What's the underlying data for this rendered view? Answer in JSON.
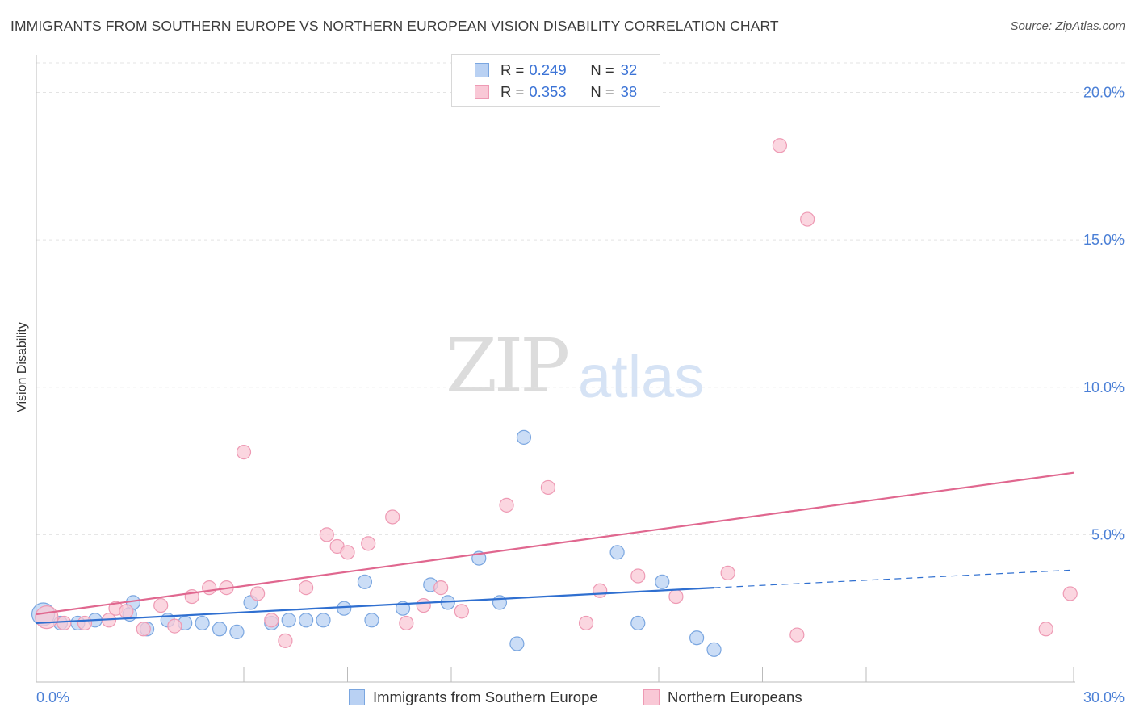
{
  "title": "IMMIGRANTS FROM SOUTHERN EUROPE VS NORTHERN EUROPEAN VISION DISABILITY CORRELATION CHART",
  "source": "Source: ZipAtlas.com",
  "watermark": {
    "zip": "ZIP",
    "atlas": "atlas"
  },
  "legend": {
    "r_label": "R =",
    "n_label": "N =",
    "rows": [
      {
        "r": "0.249",
        "n": "32"
      },
      {
        "r": "0.353",
        "n": "38"
      }
    ]
  },
  "colors": {
    "blue_fill": "#b9d1f3",
    "blue_stroke": "#7aa6e0",
    "blue_line": "#2f6fd0",
    "pink_fill": "#f9c8d6",
    "pink_stroke": "#ee9ab4",
    "pink_line": "#e0678f",
    "tick_color": "#4a7fd6"
  },
  "chart_data": {
    "type": "scatter",
    "title": "IMMIGRANTS FROM SOUTHERN EUROPE VS NORTHERN EUROPEAN VISION DISABILITY CORRELATION CHART",
    "xlabel": "",
    "ylabel": "Vision Disability",
    "xlim": [
      0,
      30
    ],
    "ylim": [
      0,
      21
    ],
    "x_tick_labels": [
      "0.0%",
      "30.0%"
    ],
    "y_ticks": [
      5,
      10,
      15,
      20
    ],
    "y_tick_labels": [
      "5.0%",
      "10.0%",
      "15.0%",
      "20.0%"
    ],
    "grid": true,
    "legend_position": "bottom",
    "series": [
      {
        "name": "Immigrants from Southern Europe",
        "color": "blue",
        "points": [
          [
            0.2,
            2.3
          ],
          [
            0.7,
            2.0
          ],
          [
            1.2,
            2.0
          ],
          [
            1.7,
            2.1
          ],
          [
            2.7,
            2.3
          ],
          [
            2.8,
            2.7
          ],
          [
            3.2,
            1.8
          ],
          [
            3.8,
            2.1
          ],
          [
            4.3,
            2.0
          ],
          [
            4.8,
            2.0
          ],
          [
            5.3,
            1.8
          ],
          [
            5.8,
            1.7
          ],
          [
            6.2,
            2.7
          ],
          [
            6.8,
            2.0
          ],
          [
            7.3,
            2.1
          ],
          [
            7.8,
            2.1
          ],
          [
            8.3,
            2.1
          ],
          [
            8.9,
            2.5
          ],
          [
            9.5,
            3.4
          ],
          [
            9.7,
            2.1
          ],
          [
            10.6,
            2.5
          ],
          [
            11.4,
            3.3
          ],
          [
            11.9,
            2.7
          ],
          [
            12.8,
            4.2
          ],
          [
            13.4,
            2.7
          ],
          [
            13.9,
            1.3
          ],
          [
            14.1,
            8.3
          ],
          [
            16.8,
            4.4
          ],
          [
            17.4,
            2.0
          ],
          [
            18.1,
            3.4
          ],
          [
            19.1,
            1.5
          ],
          [
            19.6,
            1.1
          ]
        ],
        "trend": {
          "x0": 0,
          "y0": 2.0,
          "x1": 19.6,
          "y1": 3.2
        },
        "trend_extension": {
          "x0": 19.6,
          "y0": 3.2,
          "x1": 30,
          "y1": 3.8
        }
      },
      {
        "name": "Northern Europeans",
        "color": "pink",
        "points": [
          [
            0.3,
            2.2
          ],
          [
            0.8,
            2.0
          ],
          [
            1.4,
            2.0
          ],
          [
            2.1,
            2.1
          ],
          [
            2.3,
            2.5
          ],
          [
            2.6,
            2.4
          ],
          [
            3.1,
            1.8
          ],
          [
            3.6,
            2.6
          ],
          [
            4.0,
            1.9
          ],
          [
            4.5,
            2.9
          ],
          [
            5.0,
            3.2
          ],
          [
            5.5,
            3.2
          ],
          [
            6.0,
            7.8
          ],
          [
            6.4,
            3.0
          ],
          [
            6.8,
            2.1
          ],
          [
            7.2,
            1.4
          ],
          [
            7.8,
            3.2
          ],
          [
            8.4,
            5.0
          ],
          [
            8.7,
            4.6
          ],
          [
            9.0,
            4.4
          ],
          [
            9.6,
            4.7
          ],
          [
            10.3,
            5.6
          ],
          [
            10.7,
            2.0
          ],
          [
            11.2,
            2.6
          ],
          [
            11.7,
            3.2
          ],
          [
            12.3,
            2.4
          ],
          [
            13.6,
            6.0
          ],
          [
            14.8,
            6.6
          ],
          [
            15.9,
            2.0
          ],
          [
            16.3,
            3.1
          ],
          [
            17.4,
            3.6
          ],
          [
            18.5,
            2.9
          ],
          [
            20.0,
            3.7
          ],
          [
            21.5,
            18.2
          ],
          [
            22.0,
            1.6
          ],
          [
            22.3,
            15.7
          ],
          [
            29.2,
            1.8
          ],
          [
            29.9,
            3.0
          ]
        ],
        "trend": {
          "x0": 0,
          "y0": 2.3,
          "x1": 30,
          "y1": 7.1
        }
      }
    ]
  },
  "bottom_legend": {
    "items": [
      {
        "label": "Immigrants from Southern Europe"
      },
      {
        "label": "Northern Europeans"
      }
    ]
  }
}
